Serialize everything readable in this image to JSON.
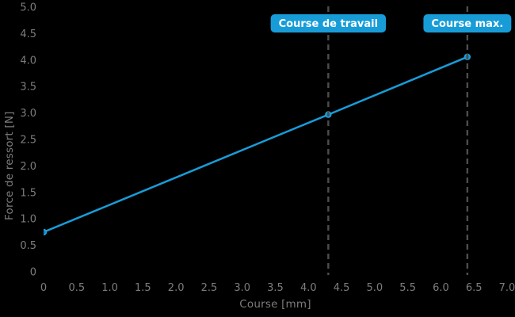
{
  "chart_data": {
    "type": "line",
    "title": "",
    "xlabel": "Course [mm]",
    "ylabel": "Force de ressort [N]",
    "xlim": [
      0,
      7.0
    ],
    "ylim": [
      0,
      5.0
    ],
    "grid": false,
    "legend_position": "none",
    "xticks": [
      "0",
      "0.5",
      "1.0",
      "1.5",
      "2.0",
      "2.5",
      "3.0",
      "3.5",
      "4.0",
      "4.5",
      "5.0",
      "5.5",
      "6.0",
      "6.5",
      "7.0"
    ],
    "yticks": [
      "0",
      "0.5",
      "1.0",
      "1.5",
      "2.0",
      "2.5",
      "3.0",
      "3.5",
      "4.0",
      "4.5",
      "5.0"
    ],
    "series": [
      {
        "name": "Force de ressort",
        "marker": "circle",
        "points": [
          {
            "x": 0,
            "y": 0.75
          },
          {
            "x": 4.3,
            "y": 2.97
          },
          {
            "x": 6.4,
            "y": 4.06
          }
        ]
      }
    ],
    "annotations": [
      {
        "id": "course-de-travail",
        "label": "Course de travail",
        "x": 4.3,
        "line_style": "dashed"
      },
      {
        "id": "course-max",
        "label": "Course max.",
        "x": 6.4,
        "line_style": "dashed"
      }
    ],
    "colors": {
      "background": "#000000",
      "line": "#189cd8",
      "marker_fill": "#1285bd",
      "marker_edge": "#1fa4e0",
      "tick_text": "#7d7d7d",
      "dashed_line": "#4d4d4d",
      "annotation_box_bg": "#189cd8",
      "annotation_box_text": "#ffffff"
    }
  }
}
